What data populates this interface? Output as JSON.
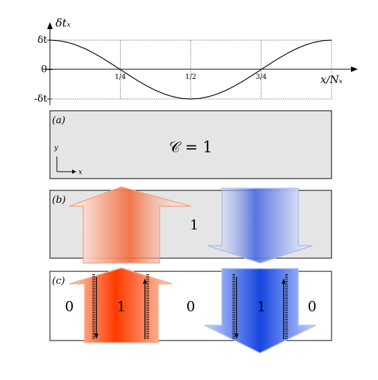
{
  "chart_data": {
    "type": "line",
    "y_label": "δtₓ",
    "x_label": "x/Nₓ",
    "xlim": [
      0,
      1
    ],
    "ylim": [
      -1,
      1
    ],
    "xticks": [
      {
        "value": 0.25,
        "label": "1/4"
      },
      {
        "value": 0.5,
        "label": "1/2"
      },
      {
        "value": 0.75,
        "label": "3/4"
      }
    ],
    "yticks": [
      {
        "value": 1,
        "label": "δt"
      },
      0,
      {
        "value": -1,
        "label": "-δt"
      }
    ],
    "grid": true,
    "x": [
      0,
      0.03125,
      0.0625,
      0.09375,
      0.125,
      0.15625,
      0.1875,
      0.21875,
      0.25,
      0.28125,
      0.3125,
      0.34375,
      0.375,
      0.40625,
      0.4375,
      0.46875,
      0.5,
      0.53125,
      0.5625,
      0.59375,
      0.625,
      0.65625,
      0.6875,
      0.71875,
      0.75,
      0.78125,
      0.8125,
      0.84375,
      0.875,
      0.90625,
      0.9375,
      0.96875,
      1
    ],
    "series": [
      {
        "color": "#000000",
        "values": [
          1,
          0.981,
          0.924,
          0.831,
          0.707,
          0.556,
          0.383,
          0.195,
          0,
          -0.195,
          -0.383,
          -0.556,
          -0.707,
          -0.831,
          -0.924,
          -0.981,
          -1,
          -0.981,
          -0.924,
          -0.831,
          -0.707,
          -0.556,
          -0.383,
          -0.195,
          0,
          0.195,
          0.383,
          0.556,
          0.707,
          0.831,
          0.924,
          0.981,
          1
        ]
      }
    ]
  },
  "panels": [
    {
      "label": "(a)",
      "texts": [
        "𝒞 = 1"
      ],
      "axis_y": "y",
      "axis_x": "x"
    },
    {
      "label": "(b)",
      "texts": [
        "1"
      ]
    },
    {
      "label": "(c)",
      "texts": [
        "0",
        "1",
        "0",
        "1",
        "0"
      ]
    }
  ]
}
